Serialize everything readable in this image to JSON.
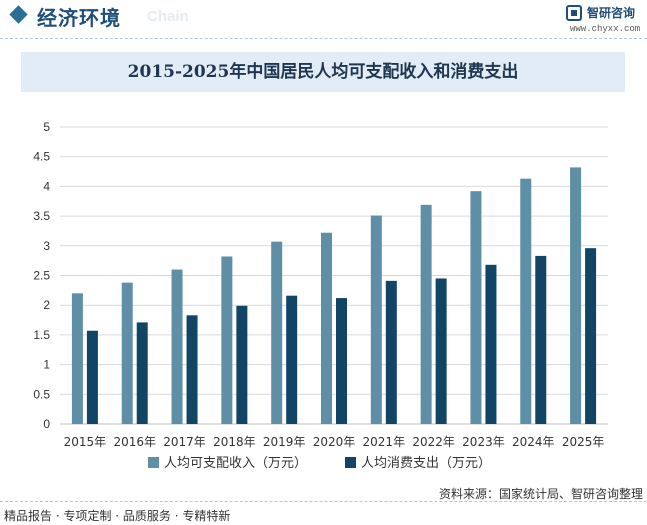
{
  "header": {
    "section_title": "经济环境",
    "section_subtitle": "Chain",
    "logo_name": "智研咨询",
    "logo_url": "www.chyxx.com"
  },
  "footer": {
    "left": "精品报告 · 专项定制 · 品质服务 · 专精特新",
    "source": "资料来源：国家统计局、智研咨询整理"
  },
  "colors": {
    "series1": "#5f8fa6",
    "series2": "#124466",
    "grid": "#d9d9d9",
    "accent": "#1f4e79"
  },
  "chart_data": {
    "type": "bar",
    "title": "2015-2025年中国居民人均可支配收入和消费支出",
    "categories": [
      "2015年",
      "2016年",
      "2017年",
      "2018年",
      "2019年",
      "2020年",
      "2021年",
      "2022年",
      "2023年",
      "2024年",
      "2025年"
    ],
    "series": [
      {
        "name": "人均可支配收入（万元）",
        "values": [
          2.2,
          2.38,
          2.6,
          2.82,
          3.07,
          3.22,
          3.51,
          3.69,
          3.92,
          4.13,
          4.32
        ]
      },
      {
        "name": "人均消费支出（万元）",
        "values": [
          1.57,
          1.71,
          1.83,
          1.99,
          2.16,
          2.12,
          2.41,
          2.45,
          2.68,
          2.83,
          2.96
        ]
      }
    ],
    "yticks": [
      "0",
      "0.5",
      "1",
      "1.5",
      "2",
      "2.5",
      "3",
      "3.5",
      "4",
      "4.5",
      "5"
    ],
    "ylim": [
      0,
      5
    ],
    "xlabel": "",
    "ylabel": "",
    "legend_position": "bottom"
  }
}
